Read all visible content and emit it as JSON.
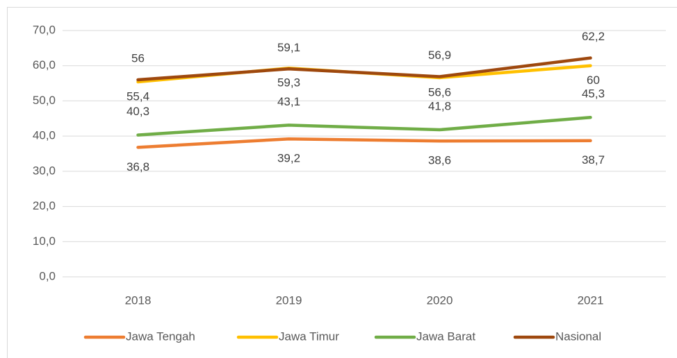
{
  "chart_data": {
    "type": "line",
    "categories": [
      "2018",
      "2019",
      "2020",
      "2021"
    ],
    "series": [
      {
        "name": "Jawa Tengah",
        "color": "#ed7d31",
        "values": [
          36.8,
          39.2,
          38.6,
          38.7
        ],
        "value_labels": [
          "36,8",
          "39,2",
          "38,6",
          "38,7"
        ]
      },
      {
        "name": "Jawa Timur",
        "color": "#ffc000",
        "values": [
          55.4,
          59.3,
          56.6,
          60
        ],
        "value_labels": [
          "55,4",
          "59,3",
          "56,6",
          "60"
        ]
      },
      {
        "name": "Jawa Barat",
        "color": "#70ad47",
        "values": [
          40.3,
          43.1,
          41.8,
          45.3
        ],
        "value_labels": [
          "40,3",
          "43,1",
          "41,8",
          "45,3"
        ]
      },
      {
        "name": "Nasional",
        "color": "#9e480e",
        "values": [
          56,
          59.1,
          56.9,
          62.2
        ],
        "value_labels": [
          "56",
          "59,1",
          "56,9",
          "62,2"
        ]
      }
    ],
    "ylim": [
      0,
      70
    ],
    "yticks": [
      {
        "value": 0,
        "label": "0,0"
      },
      {
        "value": 10,
        "label": "10,0"
      },
      {
        "value": 20,
        "label": "20,0"
      },
      {
        "value": 30,
        "label": "30,0"
      },
      {
        "value": 40,
        "label": "40,0"
      },
      {
        "value": 50,
        "label": "50,0"
      },
      {
        "value": 60,
        "label": "60,0"
      },
      {
        "value": 70,
        "label": "70,0"
      }
    ],
    "grid": true,
    "legend": "bottom"
  }
}
